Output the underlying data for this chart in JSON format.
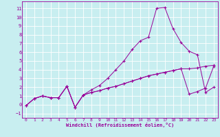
{
  "xlabel": "Windchill (Refroidissement éolien,°C)",
  "background_color": "#c8eef0",
  "grid_color": "#ffffff",
  "line_color": "#990099",
  "xlim": [
    -0.5,
    23.5
  ],
  "ylim": [
    -1.5,
    11.8
  ],
  "xticks": [
    0,
    1,
    2,
    3,
    4,
    5,
    6,
    7,
    8,
    9,
    10,
    11,
    12,
    13,
    14,
    15,
    16,
    17,
    18,
    19,
    20,
    21,
    22,
    23
  ],
  "yticks": [
    -1,
    0,
    1,
    2,
    3,
    4,
    5,
    6,
    7,
    8,
    9,
    10,
    11
  ],
  "line1_x": [
    0,
    1,
    2,
    3,
    4,
    5,
    6,
    7,
    8,
    9,
    10,
    11,
    12,
    13,
    14,
    15,
    16,
    17,
    18,
    19,
    20,
    21,
    22,
    23
  ],
  "line1_y": [
    -0.1,
    0.7,
    1.0,
    0.8,
    0.8,
    2.1,
    -0.3,
    1.1,
    1.4,
    1.6,
    1.9,
    2.1,
    2.4,
    2.7,
    3.0,
    3.3,
    3.5,
    3.7,
    3.9,
    4.1,
    1.2,
    1.5,
    1.9,
    4.4
  ],
  "line2_x": [
    0,
    1,
    2,
    3,
    4,
    5,
    6,
    7,
    8,
    9,
    10,
    11,
    12,
    13,
    14,
    15,
    16,
    17,
    18,
    19,
    20,
    21,
    22,
    23
  ],
  "line2_y": [
    -0.1,
    0.7,
    1.0,
    0.8,
    0.8,
    2.1,
    -0.3,
    1.1,
    1.7,
    2.2,
    3.0,
    4.0,
    5.0,
    6.3,
    7.3,
    7.7,
    11.0,
    11.1,
    8.7,
    7.1,
    6.1,
    5.7,
    1.4,
    2.0
  ],
  "line3_x": [
    0,
    1,
    2,
    3,
    4,
    5,
    6,
    7,
    8,
    9,
    10,
    11,
    12,
    13,
    14,
    15,
    16,
    17,
    18,
    19,
    20,
    21,
    22,
    23
  ],
  "line3_y": [
    -0.1,
    0.7,
    1.0,
    0.8,
    0.8,
    2.1,
    -0.3,
    1.1,
    1.4,
    1.6,
    1.9,
    2.1,
    2.4,
    2.7,
    3.0,
    3.3,
    3.5,
    3.7,
    3.9,
    4.1,
    4.1,
    4.2,
    4.4,
    4.5
  ]
}
